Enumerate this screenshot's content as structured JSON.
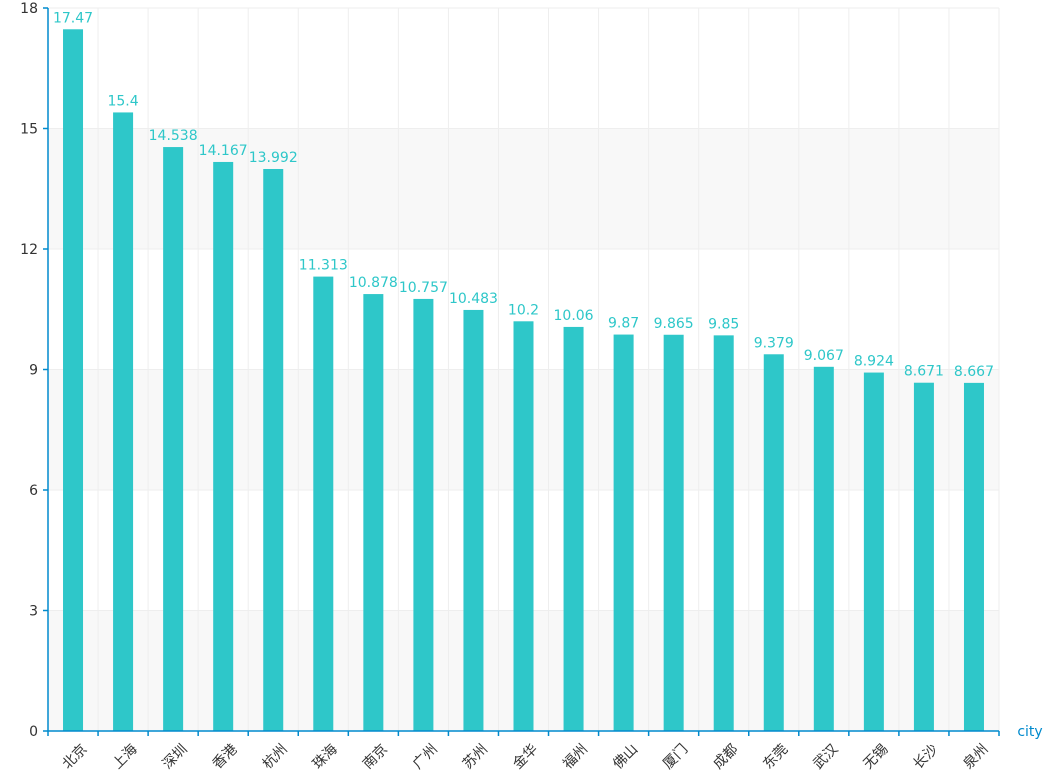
{
  "chart_data": {
    "type": "bar",
    "title": "",
    "xlabel": "city",
    "ylabel": "",
    "ylim": [
      0,
      18
    ],
    "yticks": [
      0,
      3,
      6,
      9,
      12,
      15,
      18
    ],
    "grid": true,
    "categories": [
      "北京",
      "上海",
      "深圳",
      "香港",
      "杭州",
      "珠海",
      "南京",
      "广州",
      "苏州",
      "金华",
      "福州",
      "佛山",
      "厦门",
      "成都",
      "东莞",
      "武汉",
      "无锡",
      "长沙",
      "泉州"
    ],
    "values": [
      17.47,
      15.4,
      14.538,
      14.167,
      13.992,
      11.313,
      10.878,
      10.757,
      10.483,
      10.2,
      10.06,
      9.87,
      9.865,
      9.85,
      9.379,
      9.067,
      8.924,
      8.671,
      8.667
    ],
    "value_labels": [
      "17.47",
      "15.4",
      "14.538",
      "14.167",
      "13.992",
      "11.313",
      "10.878",
      "10.757",
      "10.483",
      "10.2",
      "10.06",
      "9.87",
      "9.865",
      "9.85",
      "9.379",
      "9.067",
      "8.924",
      "8.671",
      "8.667"
    ],
    "colors": {
      "bar": "#2ec7c9",
      "label": "#2ec7c9",
      "axis": "#008acd",
      "grid": "#eeeeee",
      "band": "#f8f8f8",
      "tick_text": "#333333"
    }
  }
}
